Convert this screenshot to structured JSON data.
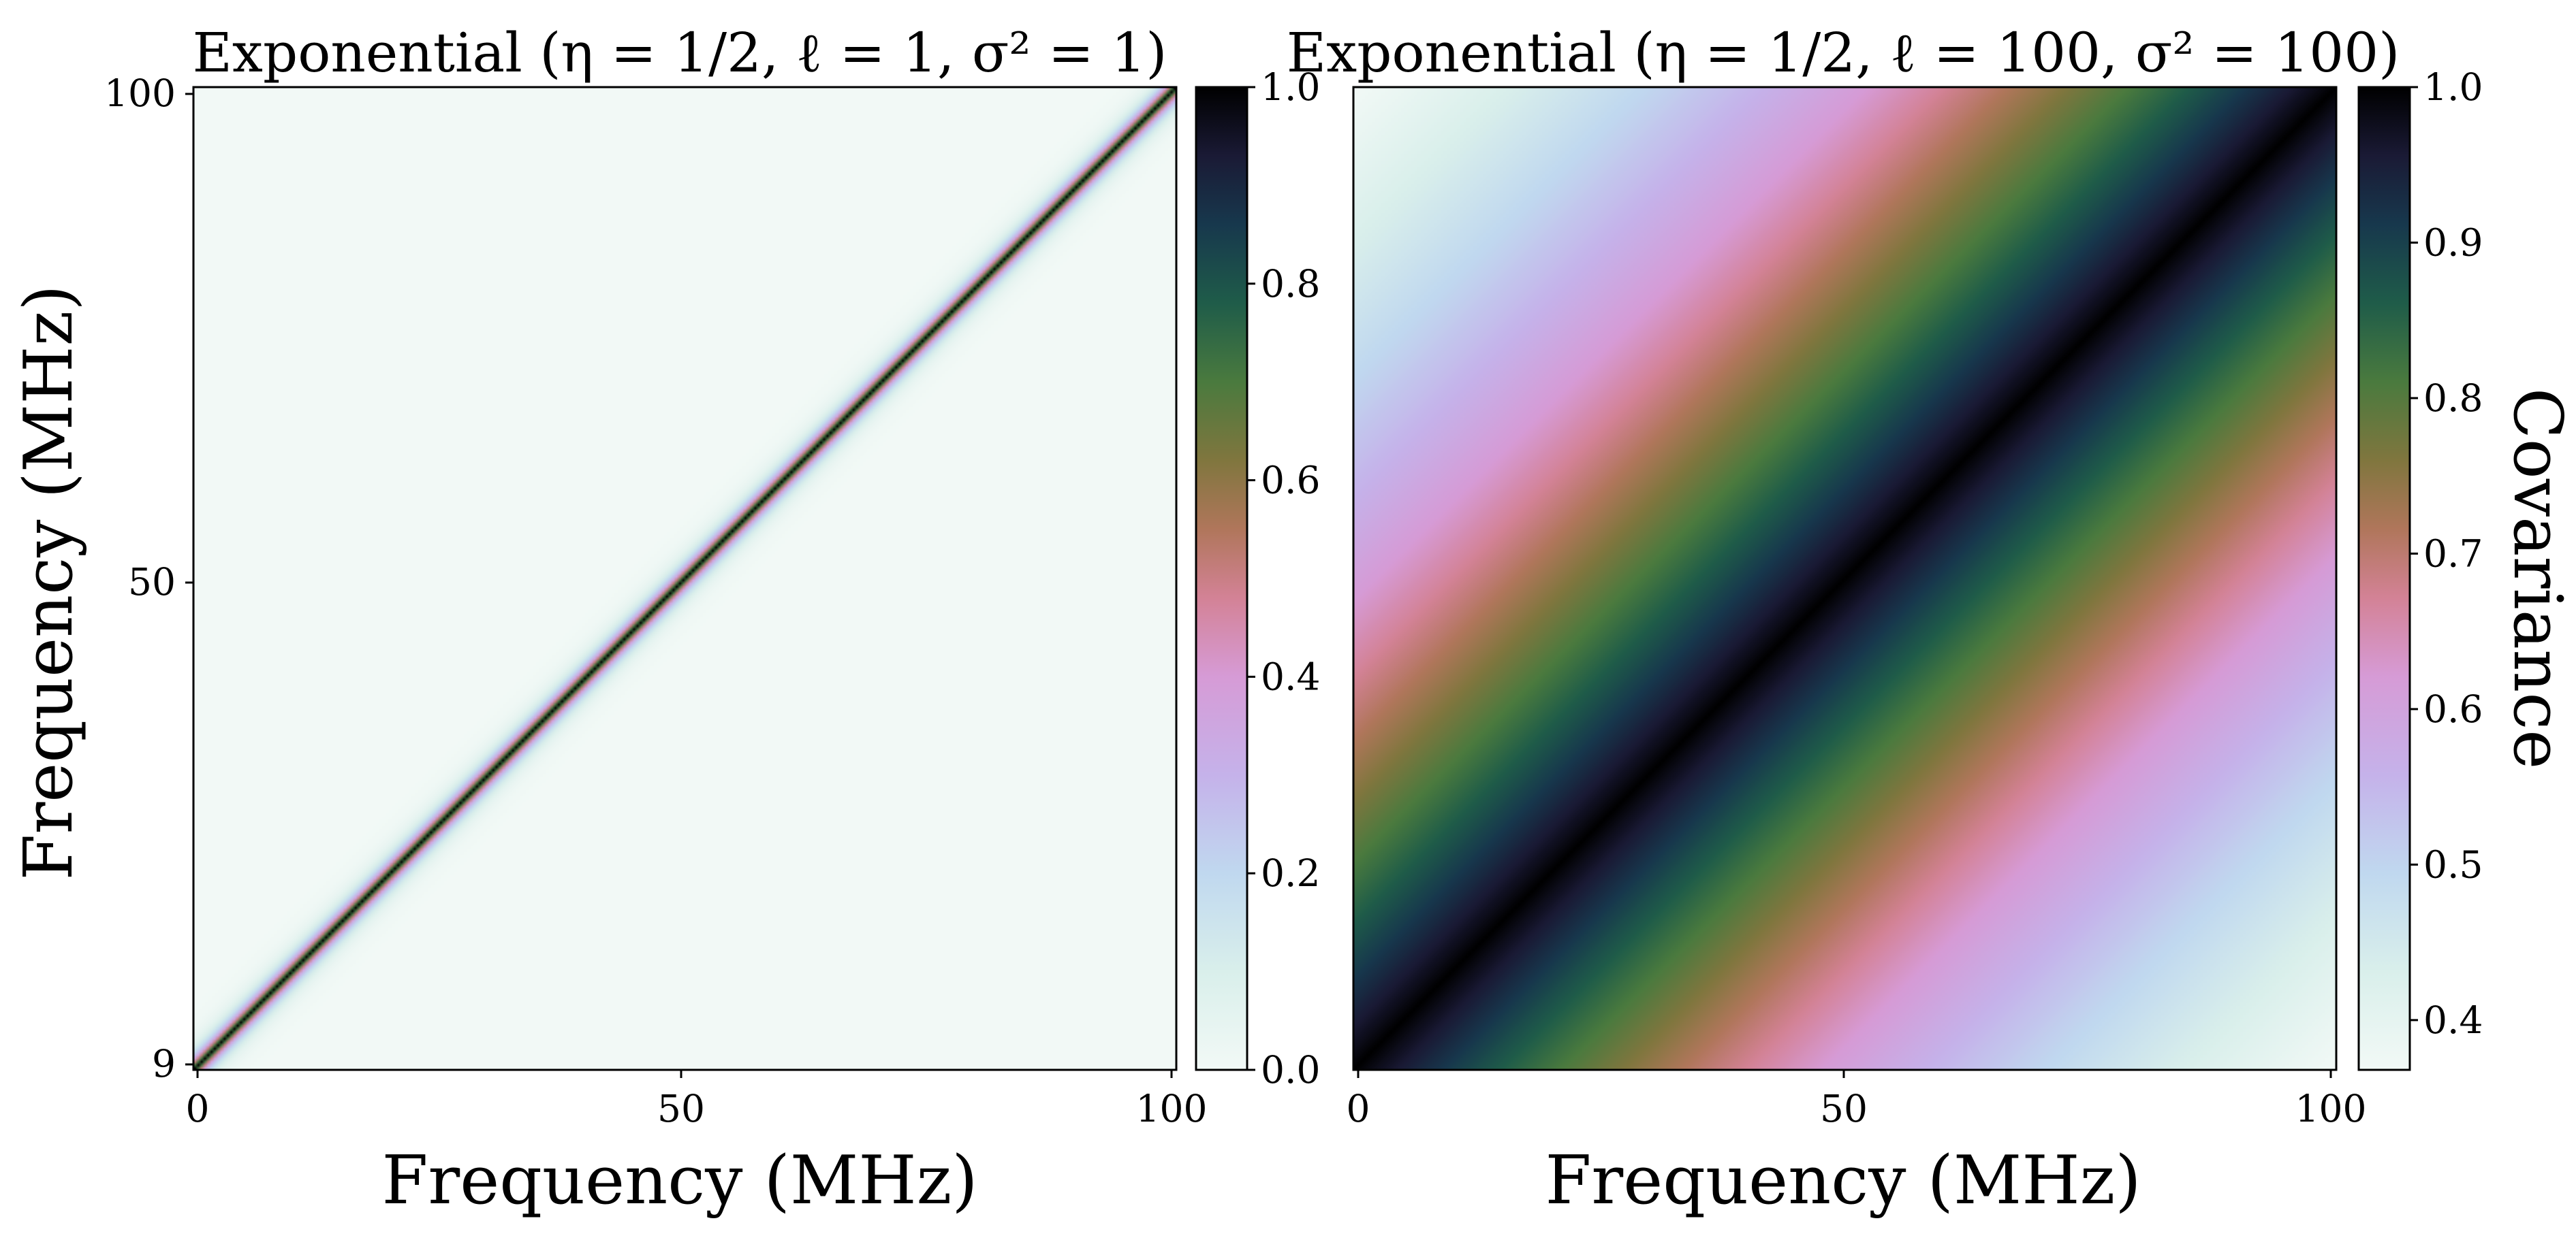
{
  "chart_data": [
    {
      "type": "heatmap",
      "title": "Exponential (η = 1/2, ℓ = 1, σ² = 1)",
      "xlabel": "Frequency (MHz)",
      "ylabel": "Frequency (MHz)",
      "x_range": [
        0,
        100
      ],
      "y_range": [
        9,
        100
      ],
      "x_ticks": [
        "0",
        "50",
        "100"
      ],
      "y_ticks": [
        "9",
        "50",
        "100"
      ],
      "kernel": {
        "eta": 0.5,
        "length_scale": 1,
        "variance": 1
      },
      "colorbar": {
        "label": "",
        "range": [
          0.0,
          1.0
        ],
        "ticks": [
          "0.0",
          "0.2",
          "0.4",
          "0.6",
          "0.8",
          "1.0"
        ],
        "colormap": "cubehelix_r"
      }
    },
    {
      "type": "heatmap",
      "title": "Exponential (η = 1/2, ℓ = 100, σ² = 100)",
      "xlabel": "Frequency (MHz)",
      "ylabel": "",
      "x_range": [
        0,
        100
      ],
      "y_range": [
        0,
        100
      ],
      "x_ticks": [
        "0",
        "50",
        "100"
      ],
      "y_ticks": [],
      "kernel": {
        "eta": 0.5,
        "length_scale": 100,
        "variance": 100
      },
      "colorbar": {
        "label": "Covariance",
        "range": [
          0.368,
          1.0
        ],
        "ticks": [
          "0.4",
          "0.5",
          "0.6",
          "0.7",
          "0.8",
          "0.9",
          "1.0"
        ],
        "colormap": "cubehelix_r"
      }
    }
  ]
}
